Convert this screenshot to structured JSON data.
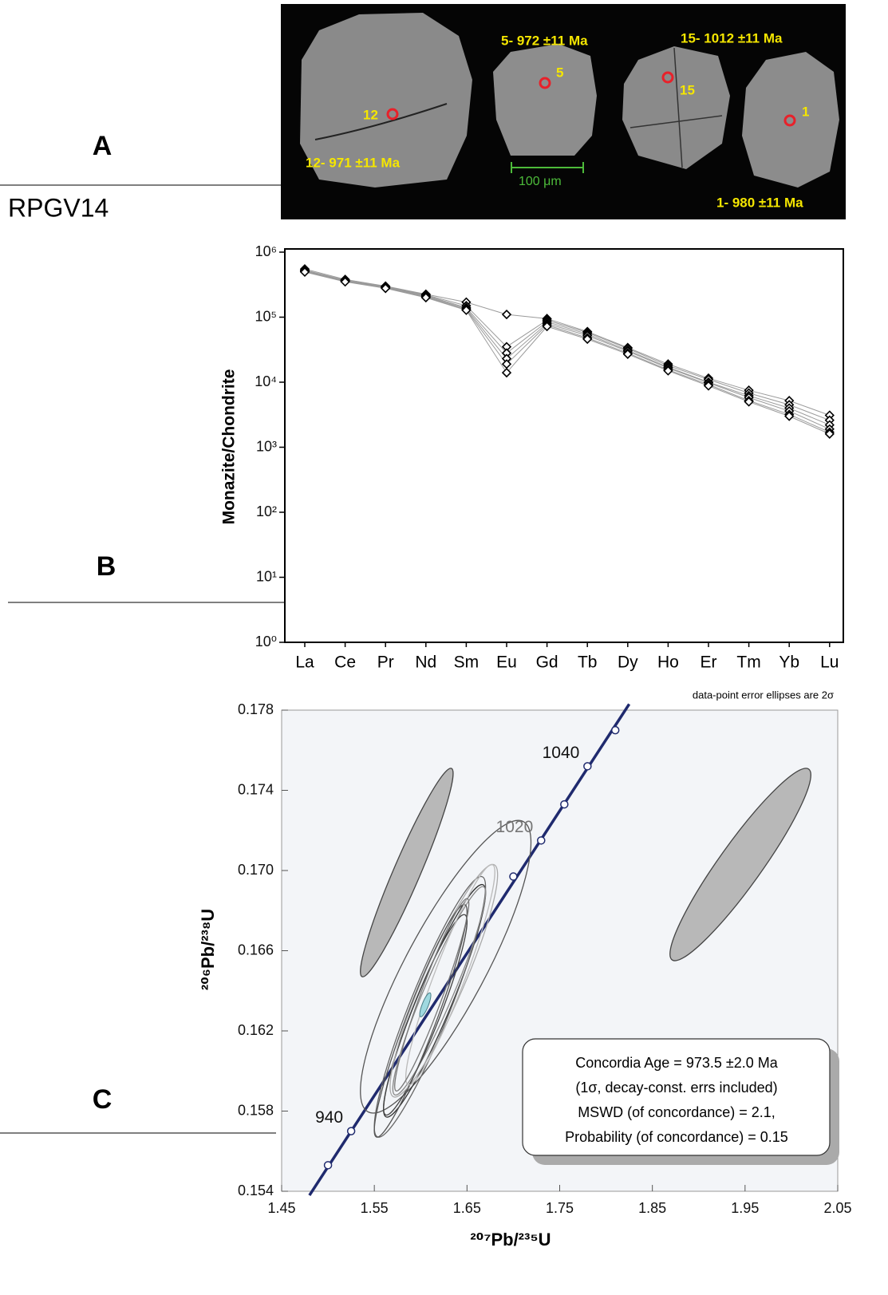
{
  "panel_labels": [
    "A",
    "B",
    "C"
  ],
  "sample": "RPGV14",
  "image": {
    "grain_labels": [
      "12- 971 ±11 Ma",
      "5- 972 ±11 Ma",
      "15-  1012 ±11 Ma",
      "1- 980 ±11 Ma"
    ],
    "spot_labels": [
      "12",
      "5",
      "15",
      "1"
    ],
    "scale_bar": "100 μm"
  },
  "chart_data": [
    {
      "type": "line",
      "y_label": "Monazite/Chondrite",
      "categories": [
        "La",
        "Ce",
        "Pr",
        "Nd",
        "Sm",
        "Eu",
        "Gd",
        "Tb",
        "Dy",
        "Ho",
        "Er",
        "Tm",
        "Yb",
        "Lu"
      ],
      "log_y": true,
      "ylim": [
        1,
        1000000
      ],
      "yticks": [
        {
          "value": 1,
          "label": "10⁰"
        },
        {
          "value": 10,
          "label": "10¹"
        },
        {
          "value": 100,
          "label": "10²"
        },
        {
          "value": 1000,
          "label": "10³"
        },
        {
          "value": 10000,
          "label": "10⁴"
        },
        {
          "value": 100000,
          "label": "10⁵"
        },
        {
          "value": 1000000,
          "label": "10⁶"
        }
      ],
      "line_color": "#9a9a9a",
      "marker_color": "#000000",
      "series": [
        {
          "values": [
            550000,
            380000,
            300000,
            225000,
            170000,
            110000,
            95000,
            60000,
            34000,
            19000,
            11500,
            7500,
            5200,
            3100
          ]
        },
        {
          "values": [
            530000,
            370000,
            295000,
            220000,
            150000,
            35000,
            90000,
            58000,
            33000,
            18000,
            11000,
            6800,
            4500,
            2600
          ]
        },
        {
          "values": [
            520000,
            365000,
            290000,
            215000,
            140000,
            28000,
            85000,
            55000,
            31000,
            17000,
            10000,
            6200,
            4000,
            2200
          ]
        },
        {
          "values": [
            510000,
            360000,
            285000,
            210000,
            135000,
            23000,
            80000,
            52000,
            30000,
            16500,
            9800,
            5800,
            3600,
            1900
          ]
        },
        {
          "values": [
            500000,
            355000,
            280000,
            205000,
            130000,
            19000,
            76000,
            48000,
            28000,
            15500,
            9200,
            5200,
            3200,
            1700
          ]
        },
        {
          "values": [
            495000,
            350000,
            278000,
            200000,
            128000,
            14000,
            72000,
            46000,
            27000,
            15000,
            8800,
            5000,
            3000,
            1600
          ]
        }
      ]
    },
    {
      "type": "concordia",
      "note": "data-point error ellipses are 2σ",
      "x_label": "²⁰⁷Pb/²³⁵U",
      "y_label": "²⁰⁶Pb/²³⁸U",
      "xlim": [
        1.45,
        2.05
      ],
      "ylim": [
        0.154,
        0.178
      ],
      "xticks": [
        1.45,
        1.55,
        1.65,
        1.75,
        1.85,
        1.95,
        2.05
      ],
      "yticks": [
        0.154,
        0.158,
        0.162,
        0.166,
        {
          "value": 0.17,
          "label": "0.170"
        },
        0.174,
        0.178
      ],
      "concordia": {
        "color": "#1f2a6e",
        "x": [
          1.48,
          1.825
        ],
        "y": [
          0.1538,
          0.1783
        ]
      },
      "age_markers": {
        "x": [
          1.5,
          1.525,
          1.7,
          1.73,
          1.755,
          1.78,
          1.81
        ],
        "y": [
          0.1553,
          0.157,
          0.1697,
          0.1715,
          0.1733,
          0.1752,
          0.177
        ],
        "labels": [
          null,
          "940",
          null,
          "1020",
          null,
          "1040",
          null
        ]
      },
      "ellipses": [
        {
          "x": 1.585,
          "y": 0.1699,
          "ex": 0.05,
          "ey": 0.0052,
          "rho": 0.95,
          "fill": "#b8b8b8",
          "color": "#444444"
        },
        {
          "x": 1.945,
          "y": 0.1703,
          "ex": 0.076,
          "ey": 0.0048,
          "rho": 0.93,
          "fill": "#b8b8b8",
          "color": "#444444"
        },
        {
          "x": 1.627,
          "y": 0.1652,
          "ex": 0.092,
          "ey": 0.0073,
          "rho": 0.85,
          "fill": "none",
          "color": "#555555"
        },
        {
          "x": 1.615,
          "y": 0.1635,
          "ex": 0.055,
          "ey": 0.0058,
          "rho": 0.93,
          "fill": "none",
          "color": "#333333"
        },
        {
          "x": 1.61,
          "y": 0.1632,
          "ex": 0.06,
          "ey": 0.0065,
          "rho": 0.92,
          "fill": "none",
          "color": "#666666"
        },
        {
          "x": 1.62,
          "y": 0.164,
          "ex": 0.05,
          "ey": 0.0052,
          "rho": 0.94,
          "fill": "none",
          "color": "#888888"
        },
        {
          "x": 1.605,
          "y": 0.1628,
          "ex": 0.045,
          "ey": 0.005,
          "rho": 0.93,
          "fill": "none",
          "color": "#444444"
        },
        {
          "x": 1.625,
          "y": 0.1645,
          "ex": 0.058,
          "ey": 0.0058,
          "rho": 0.91,
          "fill": "none",
          "color": "#aaaaaa"
        },
        {
          "x": 1.6,
          "y": 0.1625,
          "ex": 0.05,
          "ey": 0.0058,
          "rho": 0.94,
          "fill": "none",
          "color": "#555555"
        },
        {
          "x": 1.632,
          "y": 0.1648,
          "ex": 0.048,
          "ey": 0.0055,
          "rho": 0.93,
          "fill": "none",
          "color": "#bbbbbb"
        },
        {
          "x": 1.612,
          "y": 0.1638,
          "ex": 0.04,
          "ey": 0.0048,
          "rho": 0.95,
          "fill": "none",
          "color": "#777777"
        }
      ],
      "age_ellipse": {
        "x": 1.605,
        "y": 0.1633,
        "ex": 0.006,
        "ey": 0.0006,
        "rho": 0.8,
        "fill": "#9fd9e0",
        "color": "#4a7f88"
      },
      "result_box": [
        "Concordia  Age = 973.5 ±2.0 Ma",
        "(1σ, decay-const. errs included)",
        "MSWD (of concordance) = 2.1,",
        "Probability  (of concordance) = 0.15"
      ]
    }
  ]
}
